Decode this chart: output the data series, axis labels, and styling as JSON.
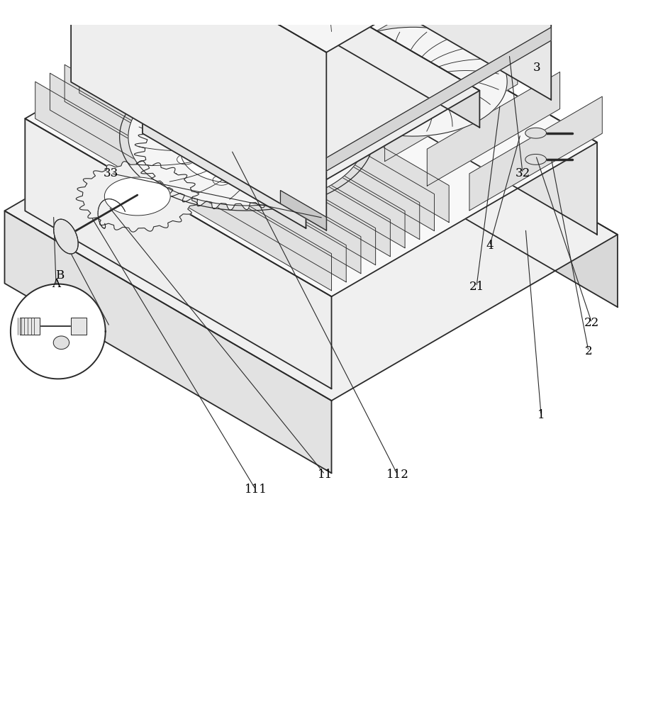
{
  "background_color": "#ffffff",
  "line_color": "#2a2a2a",
  "label_color": "#000000",
  "figsize": [
    9.35,
    10.0
  ],
  "dpi": 100,
  "iso_sx": 0.18,
  "iso_sy": 0.1,
  "iso_sz": 0.22,
  "iso_ox": 0.5,
  "iso_oy": 0.28
}
